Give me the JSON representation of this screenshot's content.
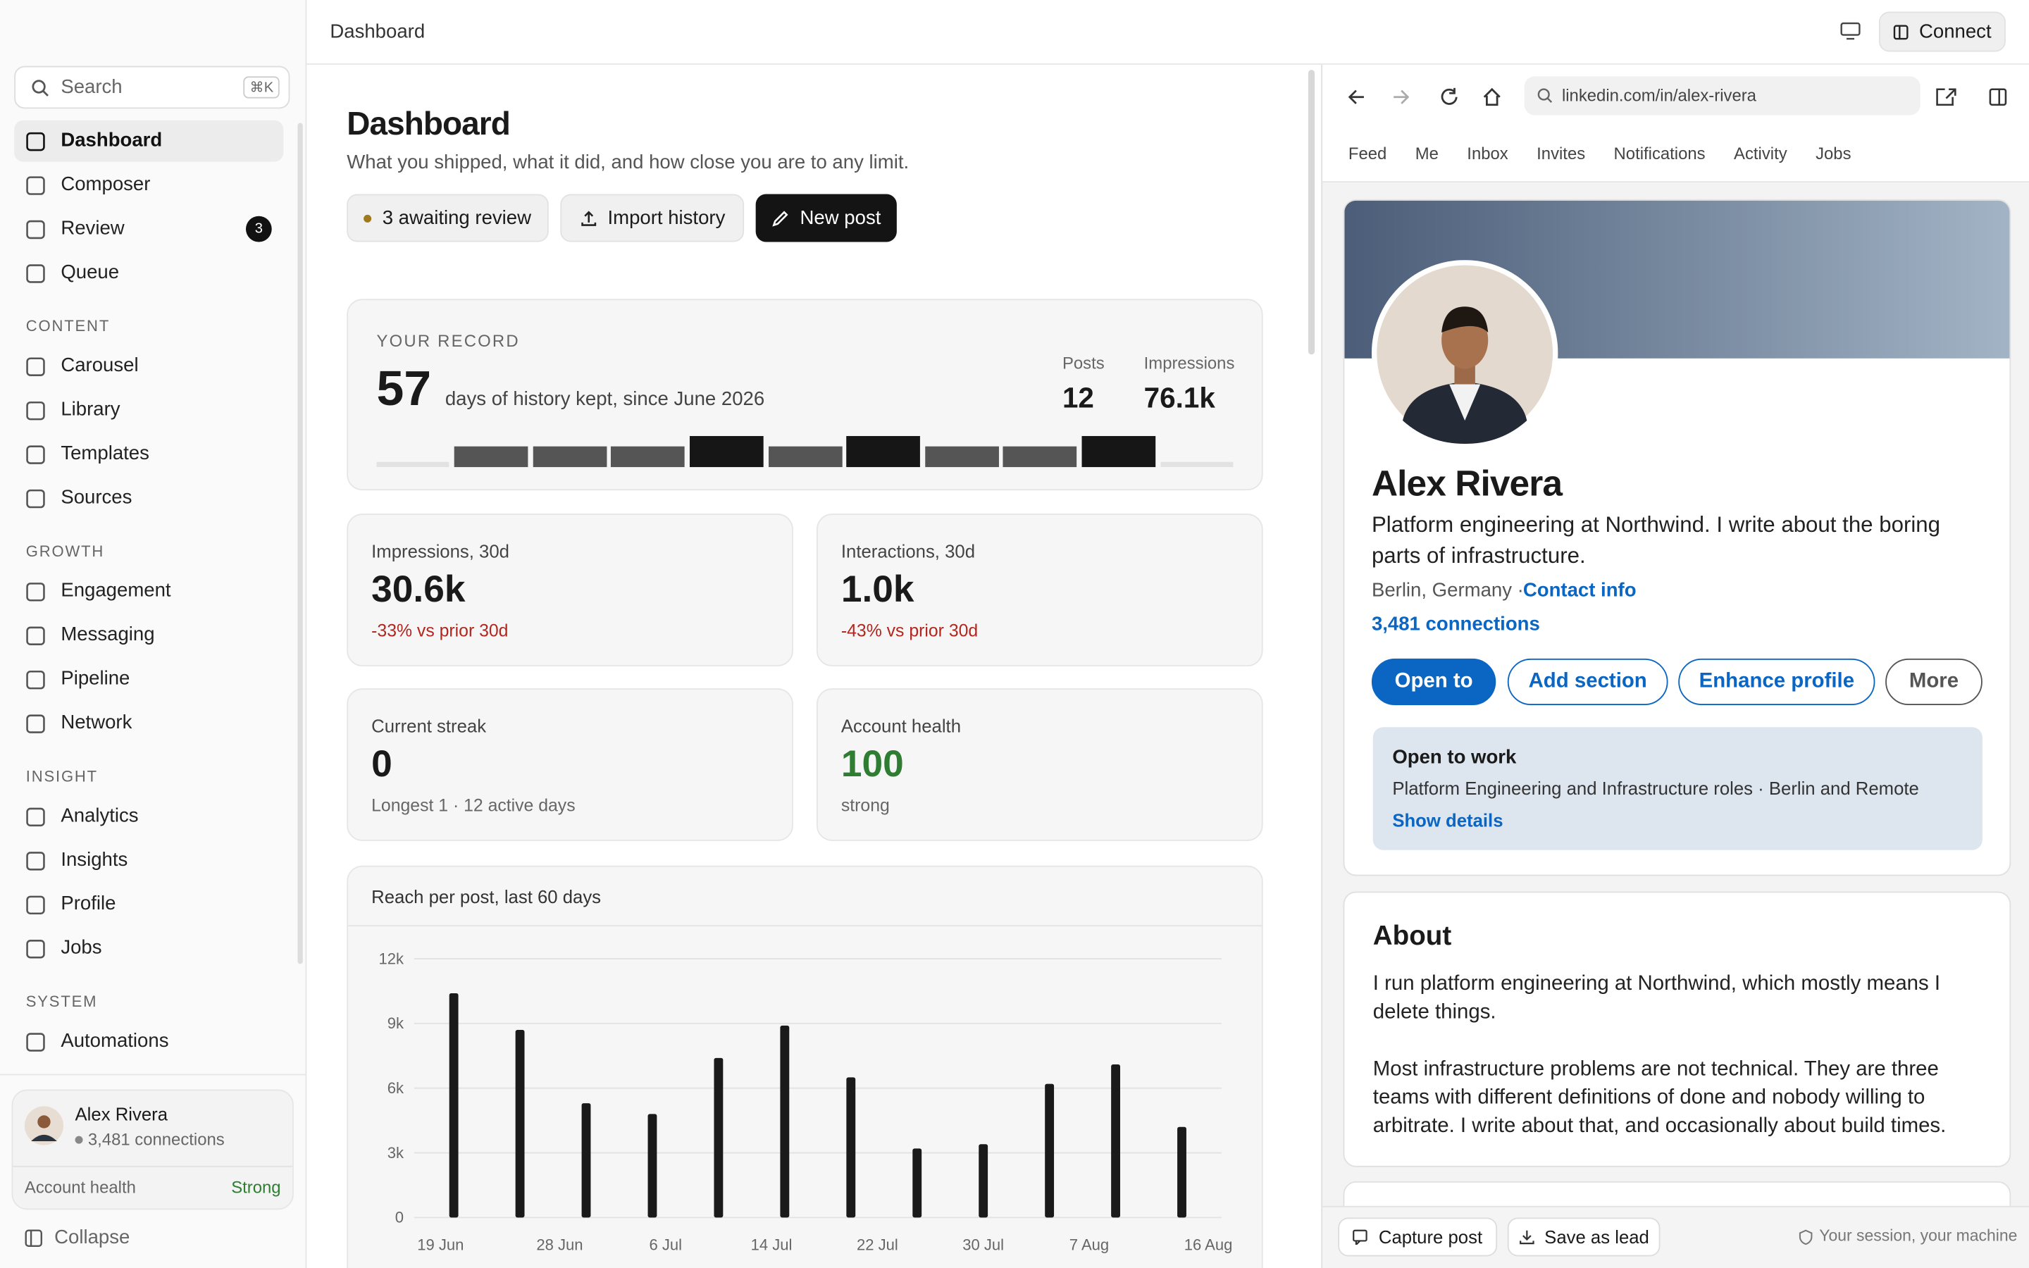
{
  "header": {
    "title": "Dashboard",
    "connect": "Connect"
  },
  "sidebar": {
    "search": "Search",
    "shortcut": "⌘K",
    "nav": [
      {
        "label": "Dashboard"
      },
      {
        "label": "Composer"
      },
      {
        "label": "Review",
        "badge": 3
      },
      {
        "label": "Queue"
      }
    ],
    "sections": [
      {
        "title": "CONTENT",
        "items": [
          "Carousel",
          "Library",
          "Templates",
          "Sources"
        ]
      },
      {
        "title": "GROWTH",
        "items": [
          "Engagement",
          "Messaging",
          "Pipeline",
          "Network"
        ]
      },
      {
        "title": "INSIGHT",
        "items": [
          "Analytics",
          "Insights",
          "Profile",
          "Jobs"
        ]
      },
      {
        "title": "SYSTEM",
        "items": [
          "Automations"
        ]
      }
    ],
    "user": {
      "name": "Alex Rivera",
      "connections": "3,481 connections",
      "health_label": "Account health",
      "health_value": "Strong"
    },
    "collapse": "Collapse"
  },
  "main": {
    "title": "Dashboard",
    "subtitle": "What you shipped, what it did, and how close you are to any limit.",
    "buttons": [
      "3 awaiting review",
      "Import history",
      "New post"
    ],
    "record": {
      "label": "YOUR RECORD",
      "days": 57,
      "days_text": "days of history kept, since June 2026",
      "stats": [
        {
          "label": "Posts",
          "value": 12
        },
        {
          "label": "Impressions",
          "value": "76.1k"
        }
      ]
    },
    "cards": [
      {
        "label": "Impressions, 30d",
        "value": "30.6k",
        "note": "-33% vs prior 30d"
      },
      {
        "label": "Interactions, 30d",
        "value": "1.0k",
        "note": "-43% vs prior 30d"
      },
      {
        "label": "Current streak",
        "value": 0,
        "note": "Longest 1 · 12 active days"
      },
      {
        "label": "Account health",
        "value": 100,
        "note": "strong"
      }
    ]
  },
  "chart_data": {
    "type": "bar",
    "title": "Reach per post, last 60 days",
    "x": [
      "20 Jun",
      "25 Jun",
      "30 Jun",
      "5 Jul",
      "10 Jul",
      "15 Jul",
      "20 Jul",
      "25 Jul",
      "30 Jul",
      "4 Aug",
      "9 Aug",
      "14 Aug"
    ],
    "values": [
      10400,
      8700,
      5300,
      4800,
      7400,
      8900,
      6500,
      3200,
      3400,
      6200,
      7100,
      4200
    ],
    "color": "#1a1a1a",
    "xlim": [
      "17 Jun",
      "17 Aug"
    ],
    "xticks": [
      "19 Jun",
      "28 Jun",
      "6 Jul",
      "14 Jul",
      "22 Jul",
      "30 Jul",
      "7 Aug",
      "16 Aug"
    ],
    "ylim": [
      0,
      12000
    ],
    "yticks": [
      0,
      {
        "value": 3000,
        "label": "3k"
      },
      {
        "value": 6000,
        "label": "6k"
      },
      {
        "value": 9000,
        "label": "9k"
      },
      {
        "value": 12000,
        "label": "12k"
      }
    ],
    "grid": true
  },
  "browser": {
    "url": "linkedin.com/in/alex-rivera",
    "tabs": [
      "Feed",
      "Me",
      "Inbox",
      "Invites",
      "Notifications",
      "Activity",
      "Jobs"
    ],
    "profile": {
      "name": "Alex Rivera",
      "headline": "Platform engineering at Northwind. I write about the boring parts of infrastructure.",
      "location": "Berlin, Germany ·",
      "contact": "Contact info",
      "connections": "3,481 connections",
      "buttons": [
        "Open to",
        "Add section",
        "Enhance profile",
        "More"
      ],
      "open_to_work": {
        "title": "Open to work",
        "text": "Platform Engineering and Infrastructure roles · Berlin and Remote",
        "link": "Show details"
      }
    },
    "about": {
      "title": "About",
      "paragraphs": [
        "I run platform engineering at Northwind, which mostly means I delete things.",
        "Most infrastructure problems are not technical. They are three teams with different definitions of done and nobody willing to arbitrate. I write about that, and occasionally about build times."
      ]
    },
    "footer": {
      "buttons": [
        "Capture post",
        "Save as lead"
      ],
      "note": "Your session, your machine"
    }
  }
}
